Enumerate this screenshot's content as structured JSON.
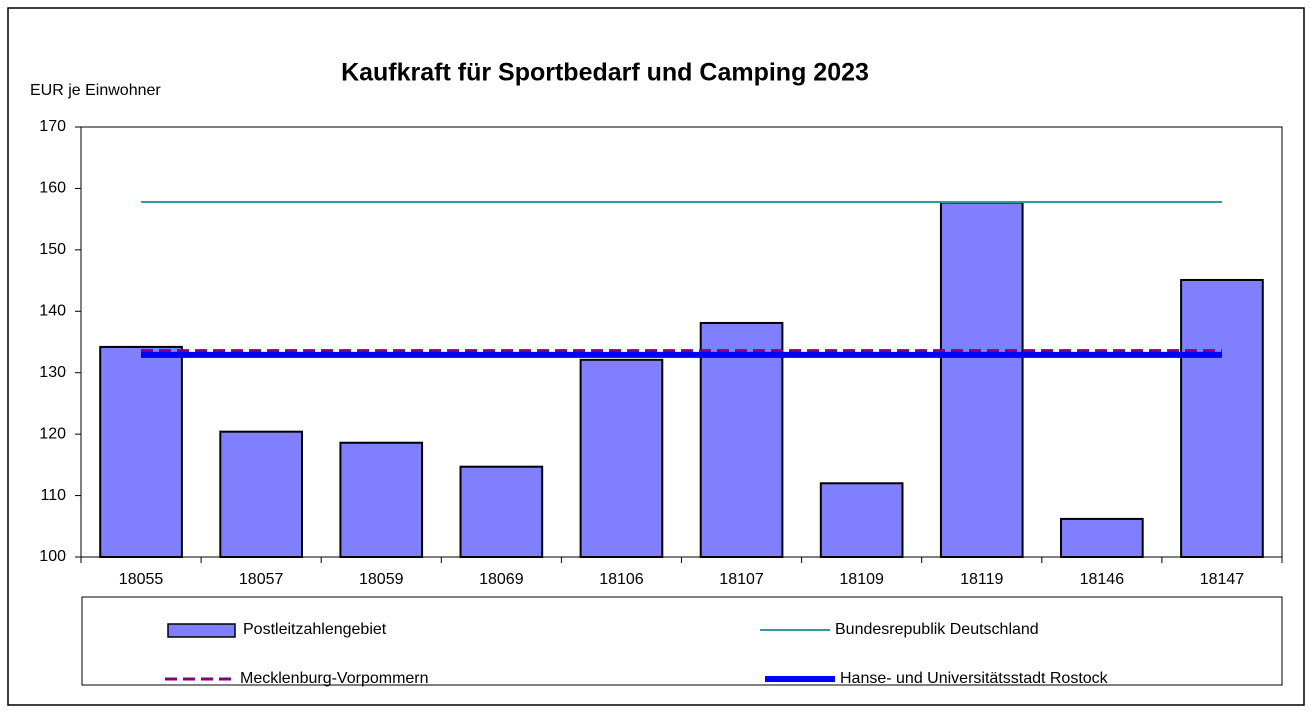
{
  "chart_data": {
    "type": "bar",
    "title": "Kaufkraft für Sportbedarf und Camping 2023",
    "y_label": "EUR je Einwohner",
    "categories": [
      "18055",
      "18057",
      "18059",
      "18069",
      "18106",
      "18107",
      "18109",
      "18119",
      "18146",
      "18147"
    ],
    "series": [
      {
        "name": "Postleitzahlengebiet",
        "type": "bar",
        "color": "#8080ff",
        "values": [
          134.2,
          120.4,
          118.6,
          114.7,
          132.1,
          138.1,
          112.0,
          157.7,
          106.2,
          145.1
        ]
      },
      {
        "name": "Bundesrepublik Deutschland",
        "type": "line",
        "color": "#339999",
        "style": "solid",
        "width": 2,
        "value": 157.8
      },
      {
        "name": "Mecklenburg-Vorpommern",
        "type": "line",
        "color": "#800080",
        "style": "dashed",
        "width": 3,
        "value": 133.6
      },
      {
        "name": "Hanse- und Universitätsstadt Rostock",
        "type": "line",
        "color": "#0000ff",
        "style": "solid",
        "width": 6,
        "value": 132.9
      }
    ],
    "ylim": [
      100,
      170
    ],
    "yticks": [
      100,
      110,
      120,
      130,
      140,
      150,
      160,
      170
    ],
    "grid": false,
    "legend": "bottom"
  }
}
